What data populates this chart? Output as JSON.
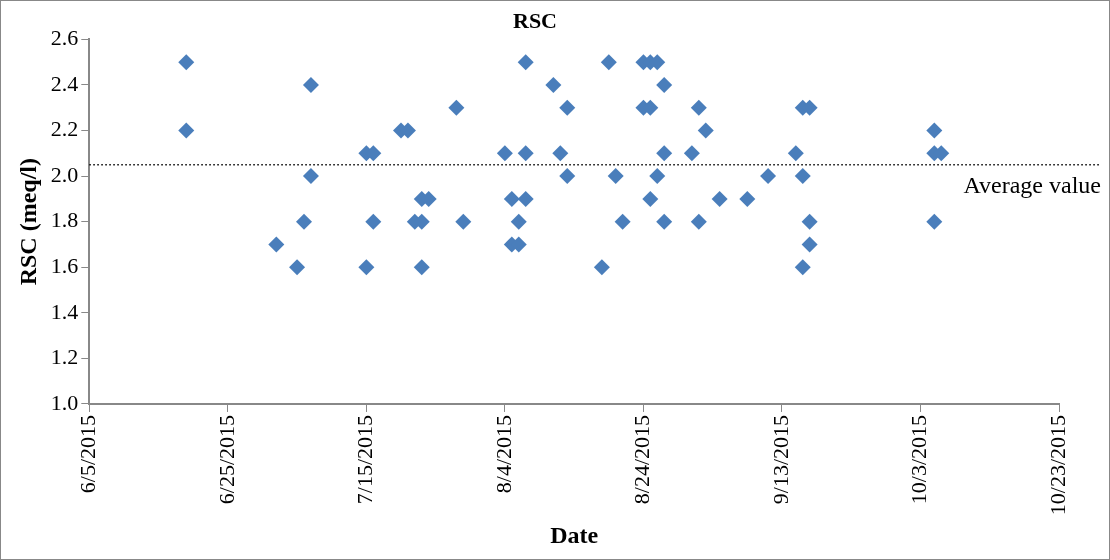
{
  "chart_data": {
    "type": "scatter",
    "title": "RSC",
    "xlabel": "Date",
    "ylabel": "RSC (meq/l)",
    "x": [
      "2015-06-19",
      "2015-06-19",
      "2015-07-02",
      "2015-07-05",
      "2015-07-06",
      "2015-07-07",
      "2015-07-07",
      "2015-07-15",
      "2015-07-15",
      "2015-07-16",
      "2015-07-16",
      "2015-07-20",
      "2015-07-21",
      "2015-07-22",
      "2015-07-23",
      "2015-07-23",
      "2015-07-23",
      "2015-07-24",
      "2015-07-28",
      "2015-07-29",
      "2015-08-04",
      "2015-08-05",
      "2015-08-05",
      "2015-08-06",
      "2015-08-06",
      "2015-08-07",
      "2015-08-07",
      "2015-08-07",
      "2015-08-11",
      "2015-08-12",
      "2015-08-13",
      "2015-08-13",
      "2015-08-18",
      "2015-08-19",
      "2015-08-20",
      "2015-08-21",
      "2015-08-24",
      "2015-08-24",
      "2015-08-25",
      "2015-08-25",
      "2015-08-25",
      "2015-08-26",
      "2015-08-26",
      "2015-08-27",
      "2015-08-27",
      "2015-08-27",
      "2015-08-31",
      "2015-09-01",
      "2015-09-01",
      "2015-09-02",
      "2015-09-04",
      "2015-09-08",
      "2015-09-11",
      "2015-09-15",
      "2015-09-16",
      "2015-09-16",
      "2015-09-16",
      "2015-09-17",
      "2015-09-17",
      "2015-09-17",
      "2015-10-05",
      "2015-10-05",
      "2015-10-05",
      "2015-10-06"
    ],
    "series": [
      {
        "color": "#4a7ebb",
        "values": [
          2.5,
          2.2,
          1.7,
          1.6,
          1.8,
          2.4,
          2.0,
          2.1,
          1.6,
          2.1,
          1.8,
          2.2,
          2.2,
          1.8,
          1.9,
          1.8,
          1.6,
          1.9,
          2.3,
          1.8,
          2.1,
          1.9,
          1.7,
          1.8,
          1.7,
          2.5,
          2.1,
          1.9,
          2.4,
          2.1,
          2.3,
          2.0,
          1.6,
          2.5,
          2.0,
          1.8,
          2.5,
          2.3,
          2.5,
          2.3,
          1.9,
          2.5,
          2.0,
          2.4,
          2.1,
          1.8,
          2.1,
          2.3,
          1.8,
          2.2,
          1.9,
          1.9,
          2.0,
          2.1,
          2.3,
          2.0,
          1.6,
          2.3,
          1.8,
          1.7,
          2.2,
          2.1,
          1.8,
          2.1
        ]
      }
    ],
    "marker": "diamond",
    "xlim": [
      "2015-06-05",
      "2015-10-23"
    ],
    "xticks": [
      {
        "value": "2015-06-05",
        "label": "6/5/2015"
      },
      {
        "value": "2015-06-25",
        "label": "6/25/2015"
      },
      {
        "value": "2015-07-15",
        "label": "7/15/2015"
      },
      {
        "value": "2015-08-04",
        "label": "8/4/2015"
      },
      {
        "value": "2015-08-24",
        "label": "8/24/2015"
      },
      {
        "value": "2015-09-13",
        "label": "9/13/2015"
      },
      {
        "value": "2015-10-03",
        "label": "10/3/2015"
      },
      {
        "value": "2015-10-23",
        "label": "10/23/2015"
      }
    ],
    "ylim": [
      1.0,
      2.6
    ],
    "yticks": [
      {
        "value": 1.0,
        "label": "1.0"
      },
      1.2,
      1.4,
      1.6,
      1.8,
      {
        "value": 2.0,
        "label": "2.0"
      },
      2.2,
      2.4,
      2.6
    ],
    "ref_lines": [
      {
        "axis": "y",
        "value": 2.05,
        "label": "Average value",
        "color": "#000000",
        "line_style": "dotted"
      }
    ],
    "grid": false,
    "legend": false
  }
}
